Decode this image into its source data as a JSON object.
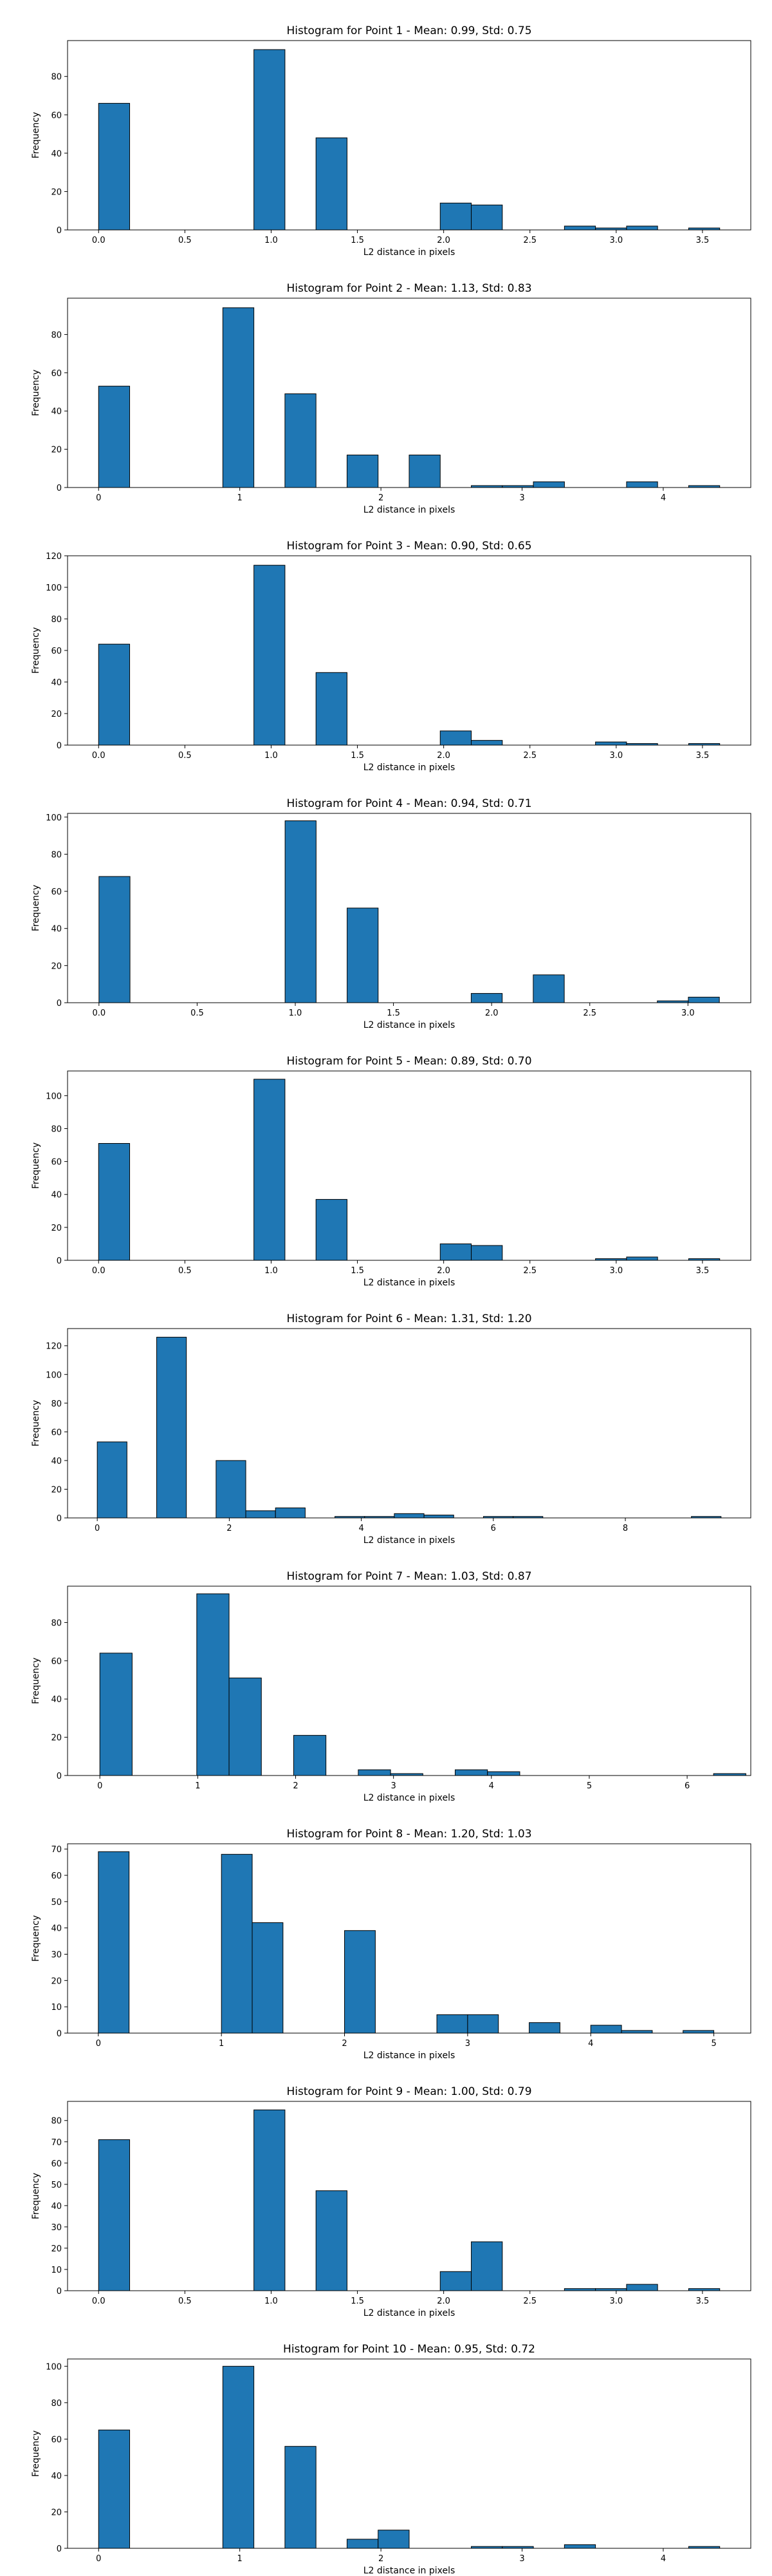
{
  "chart_data": [
    {
      "type": "bar",
      "title": "Histogram for Point 1 - Mean: 0.99, Std: 0.75",
      "xlabel": "L2 distance in pixels",
      "ylabel": "Frequency",
      "xlim": [
        -0.18,
        3.78
      ],
      "ylim": [
        0,
        98.7
      ],
      "xticks": [
        0,
        0.5,
        1,
        1.5,
        2,
        2.5,
        3,
        3.5
      ],
      "xtick_labels": [
        "0.0",
        "0.5",
        "1.0",
        "1.5",
        "2.0",
        "2.5",
        "3.0",
        "3.5"
      ],
      "yticks": [
        0,
        20,
        40,
        60,
        80
      ],
      "grid": false,
      "bin_edges": [
        0,
        0.18,
        0.36,
        0.54,
        0.72,
        0.9,
        1.08,
        1.26,
        1.44,
        1.62,
        1.8,
        1.98,
        2.16,
        2.34,
        2.52,
        2.7,
        2.88,
        3.06,
        3.24,
        3.42,
        3.6
      ],
      "values": [
        66,
        0,
        0,
        0,
        0,
        94,
        0,
        48,
        0,
        0,
        0,
        14,
        13,
        0,
        0,
        2,
        1,
        2,
        0,
        1
      ],
      "color": "#1f77b4"
    },
    {
      "type": "bar",
      "title": "Histogram for Point 2 - Mean: 1.13, Std: 0.83",
      "xlabel": "L2 distance in pixels",
      "ylabel": "Frequency",
      "xlim": [
        -0.22,
        4.62
      ],
      "ylim": [
        0,
        99
      ],
      "xticks": [
        0,
        1,
        2,
        3,
        4
      ],
      "xtick_labels": [
        "0",
        "1",
        "2",
        "3",
        "4"
      ],
      "yticks": [
        0,
        20,
        40,
        60,
        80
      ],
      "grid": false,
      "bin_edges": [
        0,
        0.22,
        0.44,
        0.66,
        0.88,
        1.1,
        1.32,
        1.54,
        1.76,
        1.98,
        2.2,
        2.42,
        2.64,
        2.86,
        3.08,
        3.3,
        3.52,
        3.74,
        3.96,
        4.18,
        4.4
      ],
      "values": [
        53,
        0,
        0,
        0,
        94,
        0,
        49,
        0,
        17,
        0,
        17,
        0,
        1,
        1,
        3,
        0,
        0,
        3,
        0,
        1
      ],
      "color": "#1f77b4"
    },
    {
      "type": "bar",
      "title": "Histogram for Point 3 - Mean: 0.90, Std: 0.65",
      "xlabel": "L2 distance in pixels",
      "ylabel": "Frequency",
      "xlim": [
        -0.18,
        3.78
      ],
      "ylim": [
        0,
        120
      ],
      "xticks": [
        0,
        0.5,
        1,
        1.5,
        2,
        2.5,
        3,
        3.5
      ],
      "xtick_labels": [
        "0.0",
        "0.5",
        "1.0",
        "1.5",
        "2.0",
        "2.5",
        "3.0",
        "3.5"
      ],
      "yticks": [
        0,
        20,
        40,
        60,
        80,
        100,
        120
      ],
      "grid": false,
      "bin_edges": [
        0,
        0.18,
        0.36,
        0.54,
        0.72,
        0.9,
        1.08,
        1.26,
        1.44,
        1.62,
        1.8,
        1.98,
        2.16,
        2.34,
        2.52,
        2.7,
        2.88,
        3.06,
        3.24,
        3.42,
        3.6
      ],
      "values": [
        64,
        0,
        0,
        0,
        0,
        114,
        0,
        46,
        0,
        0,
        0,
        9,
        3,
        0,
        0,
        0,
        2,
        1,
        0,
        1
      ],
      "color": "#1f77b4"
    },
    {
      "type": "bar",
      "title": "Histogram for Point 4 - Mean: 0.94, Std: 0.71",
      "xlabel": "L2 distance in pixels",
      "ylabel": "Frequency",
      "xlim": [
        -0.16,
        3.32
      ],
      "ylim": [
        0,
        102
      ],
      "xticks": [
        0,
        0.5,
        1,
        1.5,
        2,
        2.5,
        3
      ],
      "xtick_labels": [
        "0.0",
        "0.5",
        "1.0",
        "1.5",
        "2.0",
        "2.5",
        "3.0"
      ],
      "yticks": [
        0,
        20,
        40,
        60,
        80,
        100
      ],
      "grid": false,
      "bin_edges": [
        0,
        0.158,
        0.316,
        0.474,
        0.632,
        0.79,
        0.948,
        1.106,
        1.264,
        1.422,
        1.58,
        1.738,
        1.896,
        2.054,
        2.212,
        2.37,
        2.528,
        2.686,
        2.844,
        3.002,
        3.16
      ],
      "values": [
        68,
        0,
        0,
        0,
        0,
        0,
        98,
        0,
        51,
        0,
        0,
        0,
        5,
        0,
        15,
        0,
        0,
        0,
        1,
        3
      ],
      "color": "#1f77b4"
    },
    {
      "type": "bar",
      "title": "Histogram for Point 5 - Mean: 0.89, Std: 0.70",
      "xlabel": "L2 distance in pixels",
      "ylabel": "Frequency",
      "xlim": [
        -0.18,
        3.78
      ],
      "ylim": [
        0,
        115
      ],
      "xticks": [
        0,
        0.5,
        1,
        1.5,
        2,
        2.5,
        3,
        3.5
      ],
      "xtick_labels": [
        "0.0",
        "0.5",
        "1.0",
        "1.5",
        "2.0",
        "2.5",
        "3.0",
        "3.5"
      ],
      "yticks": [
        0,
        20,
        40,
        60,
        80,
        100
      ],
      "grid": false,
      "bin_edges": [
        0,
        0.18,
        0.36,
        0.54,
        0.72,
        0.9,
        1.08,
        1.26,
        1.44,
        1.62,
        1.8,
        1.98,
        2.16,
        2.34,
        2.52,
        2.7,
        2.88,
        3.06,
        3.24,
        3.42,
        3.6
      ],
      "values": [
        71,
        0,
        0,
        0,
        0,
        110,
        0,
        37,
        0,
        0,
        0,
        10,
        9,
        0,
        0,
        0,
        1,
        2,
        0,
        1
      ],
      "color": "#1f77b4"
    },
    {
      "type": "bar",
      "title": "Histogram for Point 6 - Mean: 1.31, Std: 1.20",
      "xlabel": "L2 distance in pixels",
      "ylabel": "Frequency",
      "xlim": [
        -0.45,
        9.9
      ],
      "ylim": [
        0,
        132
      ],
      "xticks": [
        0,
        2,
        4,
        6,
        8
      ],
      "xtick_labels": [
        "0",
        "2",
        "4",
        "6",
        "8"
      ],
      "yticks": [
        0,
        20,
        40,
        60,
        80,
        100,
        120
      ],
      "grid": false,
      "bin_edges": [
        0,
        0.45,
        0.9,
        1.35,
        1.8,
        2.25,
        2.7,
        3.15,
        3.6,
        4.05,
        4.5,
        4.95,
        5.4,
        5.85,
        6.3,
        6.75,
        7.2,
        7.65,
        8.1,
        8.55,
        9.0,
        9.45
      ],
      "values": [
        53,
        0,
        126,
        0,
        40,
        5,
        7,
        0,
        1,
        1,
        3,
        2,
        0,
        1,
        1,
        0,
        0,
        0,
        0,
        0,
        1
      ],
      "color": "#1f77b4"
    },
    {
      "type": "bar",
      "title": "Histogram for Point 7 - Mean: 1.03, Std: 0.87",
      "xlabel": "L2 distance in pixels",
      "ylabel": "Frequency",
      "xlim": [
        -0.33,
        6.65
      ],
      "ylim": [
        0,
        99
      ],
      "xticks": [
        0,
        1,
        2,
        3,
        4,
        5,
        6
      ],
      "xtick_labels": [
        "0",
        "1",
        "2",
        "3",
        "4",
        "5",
        "6"
      ],
      "yticks": [
        0,
        20,
        40,
        60,
        80
      ],
      "grid": false,
      "bin_edges": [
        0,
        0.33,
        0.66,
        0.99,
        1.32,
        1.65,
        1.98,
        2.31,
        2.64,
        2.97,
        3.3,
        3.63,
        3.96,
        4.29,
        4.62,
        4.95,
        5.28,
        5.61,
        5.94,
        6.27,
        6.6
      ],
      "values": [
        64,
        0,
        0,
        95,
        51,
        0,
        21,
        0,
        3,
        1,
        0,
        3,
        2,
        0,
        0,
        0,
        0,
        0,
        0,
        1
      ],
      "color": "#1f77b4"
    },
    {
      "type": "bar",
      "title": "Histogram for Point 8 - Mean: 1.20, Std: 1.03",
      "xlabel": "L2 distance in pixels",
      "ylabel": "Frequency",
      "xlim": [
        -0.25,
        5.3
      ],
      "ylim": [
        0,
        72
      ],
      "xticks": [
        0,
        1,
        2,
        3,
        4,
        5
      ],
      "xtick_labels": [
        "0",
        "1",
        "2",
        "3",
        "4",
        "5"
      ],
      "yticks": [
        0,
        10,
        20,
        30,
        40,
        50,
        60,
        70
      ],
      "grid": false,
      "bin_edges": [
        0,
        0.25,
        0.5,
        0.75,
        1.0,
        1.25,
        1.5,
        1.75,
        2.0,
        2.25,
        2.5,
        2.75,
        3.0,
        3.25,
        3.5,
        3.75,
        4.0,
        4.25,
        4.5,
        4.75,
        5.0
      ],
      "values": [
        69,
        0,
        0,
        0,
        68,
        42,
        0,
        0,
        39,
        0,
        0,
        7,
        7,
        0,
        4,
        0,
        3,
        1,
        0,
        1
      ],
      "color": "#1f77b4"
    },
    {
      "type": "bar",
      "title": "Histogram for Point 9 - Mean: 1.00, Std: 0.79",
      "xlabel": "L2 distance in pixels",
      "ylabel": "Frequency",
      "xlim": [
        -0.18,
        3.78
      ],
      "ylim": [
        0,
        89
      ],
      "xticks": [
        0,
        0.5,
        1,
        1.5,
        2,
        2.5,
        3,
        3.5
      ],
      "xtick_labels": [
        "0.0",
        "0.5",
        "1.0",
        "1.5",
        "2.0",
        "2.5",
        "3.0",
        "3.5"
      ],
      "yticks": [
        0,
        10,
        20,
        30,
        40,
        50,
        60,
        70,
        80
      ],
      "grid": false,
      "bin_edges": [
        0,
        0.18,
        0.36,
        0.54,
        0.72,
        0.9,
        1.08,
        1.26,
        1.44,
        1.62,
        1.8,
        1.98,
        2.16,
        2.34,
        2.52,
        2.7,
        2.88,
        3.06,
        3.24,
        3.42,
        3.6
      ],
      "values": [
        71,
        0,
        0,
        0,
        0,
        85,
        0,
        47,
        0,
        0,
        0,
        9,
        23,
        0,
        0,
        1,
        1,
        3,
        0,
        1
      ],
      "color": "#1f77b4"
    },
    {
      "type": "bar",
      "title": "Histogram for Point 10 - Mean: 0.95, Std: 0.72",
      "xlabel": "L2 distance in pixels",
      "ylabel": "Frequency",
      "xlim": [
        -0.22,
        4.62
      ],
      "ylim": [
        0,
        104
      ],
      "xticks": [
        0,
        1,
        2,
        3,
        4
      ],
      "xtick_labels": [
        "0",
        "1",
        "2",
        "3",
        "4"
      ],
      "yticks": [
        0,
        20,
        40,
        60,
        80,
        100
      ],
      "grid": false,
      "bin_edges": [
        0,
        0.22,
        0.44,
        0.66,
        0.88,
        1.1,
        1.32,
        1.54,
        1.76,
        1.98,
        2.2,
        2.42,
        2.64,
        2.86,
        3.08,
        3.3,
        3.52,
        3.74,
        3.96,
        4.18,
        4.4
      ],
      "values": [
        65,
        0,
        0,
        0,
        100,
        0,
        56,
        0,
        5,
        10,
        0,
        0,
        1,
        1,
        0,
        2,
        0,
        0,
        0,
        1
      ],
      "color": "#1f77b4"
    }
  ]
}
